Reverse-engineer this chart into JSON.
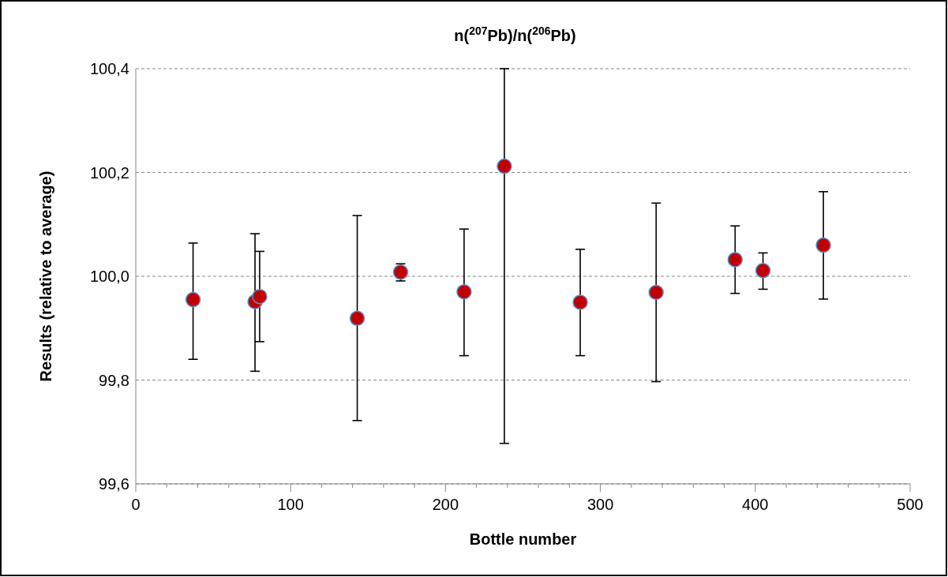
{
  "chart_data": {
    "type": "scatter",
    "title": "n($^{207}$Pb)/n($^{206}$Pb)",
    "xlabel": "Bottle number",
    "ylabel": "Results (relative to average)",
    "x": [
      37,
      77,
      80,
      143,
      171,
      212,
      238,
      287,
      336,
      387,
      405,
      444
    ],
    "series": [
      {
        "color": "#c00000",
        "values": [
          99.955,
          99.951,
          99.961,
          99.919,
          100.008,
          99.97,
          100.212,
          99.95,
          99.969,
          100.032,
          100.011,
          100.06
        ],
        "errors": [
          [
            99.84,
            100.064
          ],
          [
            99.817,
            100.082
          ],
          [
            99.874,
            100.048
          ],
          [
            99.722,
            100.117
          ],
          [
            99.991,
            100.024
          ],
          [
            99.847,
            100.091
          ],
          [
            99.678,
            100.4
          ],
          [
            99.847,
            100.052
          ],
          [
            99.797,
            100.141
          ],
          [
            99.967,
            100.097
          ],
          [
            99.975,
            100.045
          ],
          [
            99.956,
            100.163
          ]
        ]
      }
    ],
    "xlim": [
      0,
      500
    ],
    "xticks": [
      0,
      {
        "value": 20,
        "label": null
      },
      {
        "value": 40,
        "label": null
      },
      {
        "value": 60,
        "label": null
      },
      {
        "value": 80,
        "label": null
      },
      100,
      {
        "value": 120,
        "label": null
      },
      {
        "value": 140,
        "label": null
      },
      {
        "value": 160,
        "label": null
      },
      {
        "value": 180,
        "label": null
      },
      200,
      {
        "value": 220,
        "label": null
      },
      {
        "value": 240,
        "label": null
      },
      {
        "value": 260,
        "label": null
      },
      {
        "value": 280,
        "label": null
      },
      300,
      {
        "value": 320,
        "label": null
      },
      {
        "value": 340,
        "label": null
      },
      {
        "value": 360,
        "label": null
      },
      {
        "value": 380,
        "label": null
      },
      400,
      {
        "value": 420,
        "label": null
      },
      {
        "value": 440,
        "label": null
      },
      {
        "value": 460,
        "label": null
      },
      {
        "value": 480,
        "label": null
      },
      500
    ],
    "ylim": [
      99.6,
      100.4
    ],
    "yticks": [
      {
        "value": 99.6,
        "label": "99,6"
      },
      {
        "value": 99.8,
        "label": "99,8"
      },
      {
        "value": 100.0,
        "label": "100,0"
      },
      {
        "value": 100.2,
        "label": "100,2"
      },
      {
        "value": 100.4,
        "label": "100,4"
      }
    ],
    "grid": "y",
    "marker": "circle"
  }
}
